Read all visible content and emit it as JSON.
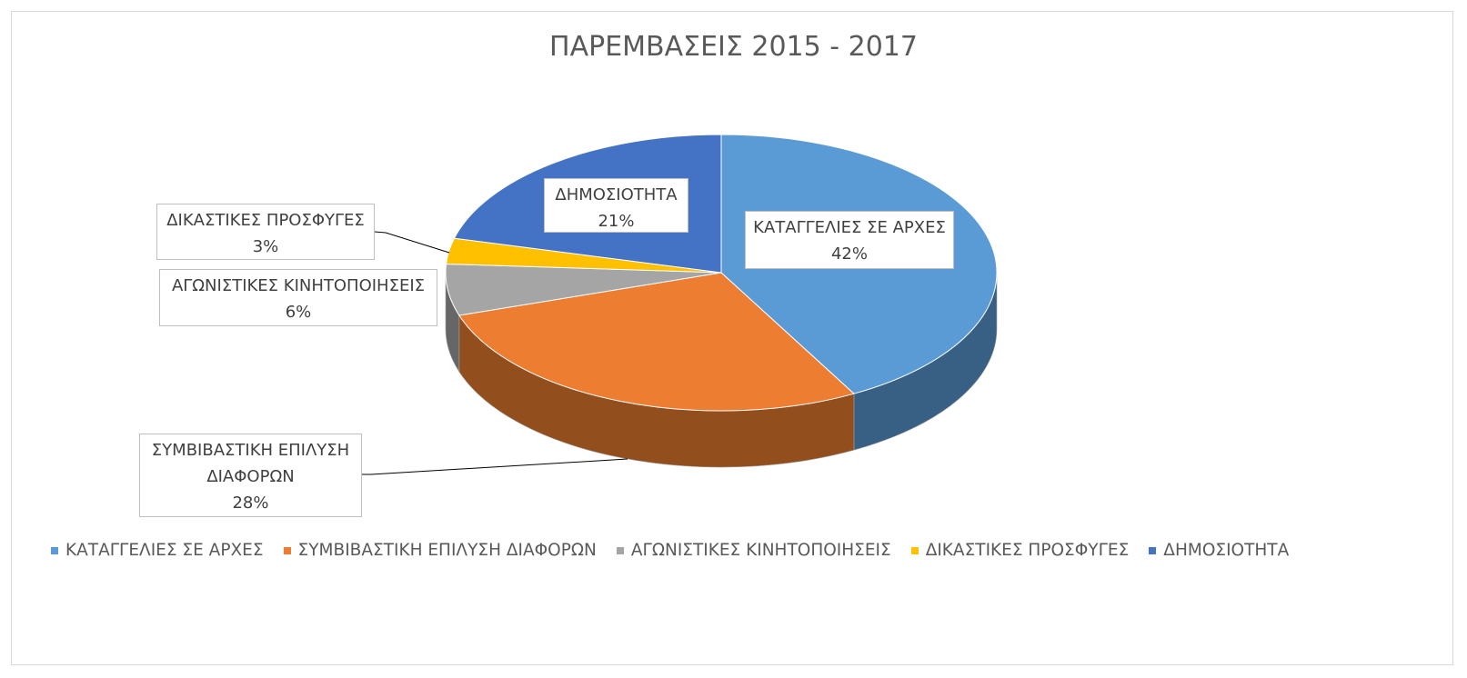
{
  "chart_data": {
    "type": "pie",
    "title": "ΠΑΡΕΜΒΑΣΕΙΣ 2015 - 2017",
    "categories": [
      "ΚΑΤΑΓΓΕΛΙΕΣ ΣΕ ΑΡΧΕΣ",
      "ΣΥΜΒΙΒΑΣΤΙΚΗ ΕΠΙΛΥΣΗ ΔΙΑΦΟΡΩΝ",
      "ΑΓΩΝΙΣΤΙΚΕΣ ΚΙΝΗΤΟΠΟΙΗΣΕΙΣ",
      "ΔΙΚΑΣΤΙΚΕΣ ΠΡΟΣΦΥΓΕΣ",
      "ΔΗΜΟΣΙΟΤΗΤΑ"
    ],
    "values": [
      42,
      28,
      6,
      3,
      21
    ],
    "value_labels": [
      "42%",
      "28%",
      "6%",
      "3%",
      "21%"
    ],
    "colors": [
      "#5b9bd5",
      "#ed7d31",
      "#a5a5a5",
      "#ffc000",
      "#4472c4"
    ],
    "legend": "bottom"
  }
}
